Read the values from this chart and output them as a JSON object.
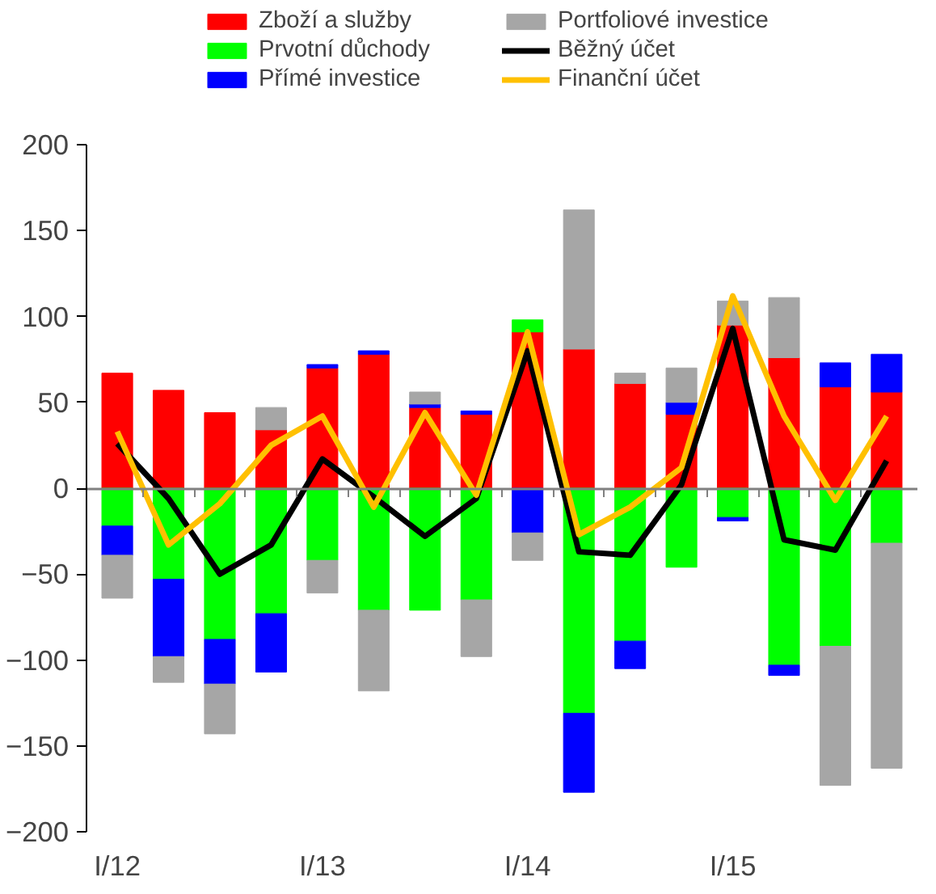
{
  "chart_data": {
    "type": "bar",
    "stacked": true,
    "categories": [
      "I/12",
      null,
      null,
      null,
      "I/13",
      null,
      null,
      null,
      "I/14",
      null,
      null,
      null,
      "I/15",
      null,
      null,
      null
    ],
    "series": [
      {
        "name": "Zboží a služby",
        "color": "#ff0000",
        "values": [
          67,
          57,
          44,
          34,
          70,
          78,
          47,
          43,
          91,
          81,
          61,
          43,
          95,
          76,
          59,
          56
        ]
      },
      {
        "name": "Prvotní důchody",
        "color": "#00ff00",
        "values": [
          -22,
          -53,
          -88,
          -73,
          -42,
          -71,
          -71,
          -65,
          7,
          -131,
          -89,
          -46,
          -17,
          -103,
          -92,
          -32
        ]
      },
      {
        "name": "Přímé investice",
        "color": "#0000ff",
        "values": [
          -17,
          -45,
          -26,
          -34,
          2,
          2,
          2,
          2,
          -26,
          -46,
          -16,
          7,
          -2,
          -6,
          14,
          22
        ]
      },
      {
        "name": "Portfoliové investice",
        "color": "#a6a6a6",
        "values": [
          -25,
          -15,
          -29,
          13,
          -19,
          -47,
          7,
          -33,
          -16,
          81,
          6,
          20,
          14,
          35,
          -81,
          -131
        ]
      },
      {
        "name": "Běžný účet",
        "type": "line",
        "color": "#000000",
        "values": [
          26,
          -6,
          -50,
          -33,
          17,
          -5,
          -28,
          -6,
          80,
          -37,
          -39,
          2,
          93,
          -30,
          -36,
          16
        ]
      },
      {
        "name": "Finanční účet",
        "type": "line",
        "color": "#ffc000",
        "values": [
          33,
          -33,
          -9,
          25,
          42,
          -11,
          44,
          -4,
          91,
          -27,
          -11,
          12,
          112,
          42,
          -7,
          42
        ]
      }
    ],
    "ylim": [
      -200,
      200
    ],
    "yticks": [
      -200,
      -150,
      -100,
      -50,
      0,
      50,
      100,
      150,
      200
    ],
    "legend": "top",
    "marker": "none",
    "line_style": "solid"
  }
}
